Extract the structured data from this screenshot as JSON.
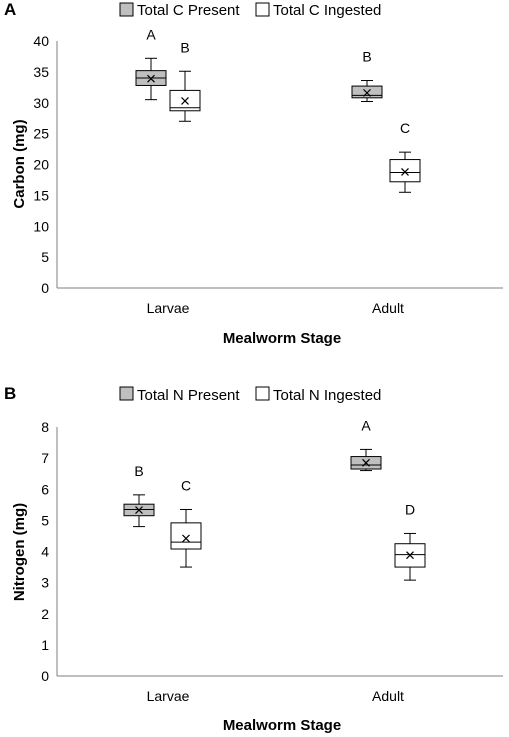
{
  "chart_data": [
    {
      "type": "box",
      "panel_label": "A",
      "xlabel": "Mealworm Stage",
      "ylabel": "Carbon (mg)",
      "ylim": [
        0,
        40
      ],
      "yticks": [
        "0",
        "5",
        "10",
        "15",
        "20",
        "25",
        "30",
        "35",
        "40"
      ],
      "categories": [
        "Larvae",
        "Adult"
      ],
      "legend_position": "top",
      "series": [
        {
          "name": "Total C Present",
          "fill": "#bfbfbf",
          "boxes": [
            {
              "category": "Larvae",
              "min": 30.5,
              "q1": 32.8,
              "median": 34.0,
              "q3": 35.2,
              "max": 37.2,
              "mean": 33.9,
              "letter": "A"
            },
            {
              "category": "Adult",
              "min": 30.2,
              "q1": 30.8,
              "median": 31.2,
              "q3": 32.7,
              "max": 33.6,
              "mean": 31.6,
              "letter": "B"
            }
          ]
        },
        {
          "name": "Total C Ingested",
          "fill": "#ffffff",
          "boxes": [
            {
              "category": "Larvae",
              "min": 27.0,
              "q1": 28.7,
              "median": 29.2,
              "q3": 32.0,
              "max": 35.1,
              "mean": 30.3,
              "letter": "B"
            },
            {
              "category": "Adult",
              "min": 15.5,
              "q1": 17.2,
              "median": 18.7,
              "q3": 20.8,
              "max": 22.0,
              "mean": 18.8,
              "letter": "C"
            }
          ]
        }
      ]
    },
    {
      "type": "box",
      "panel_label": "B",
      "xlabel": "Mealworm Stage",
      "ylabel": "Nitrogen (mg)",
      "ylim": [
        0,
        8
      ],
      "yticks": [
        "0",
        "1",
        "2",
        "3",
        "4",
        "5",
        "6",
        "7",
        "8"
      ],
      "categories": [
        "Larvae",
        "Adult"
      ],
      "legend_position": "top",
      "series": [
        {
          "name": "Total N Present",
          "fill": "#bfbfbf",
          "boxes": [
            {
              "category": "Larvae",
              "min": 4.8,
              "q1": 5.15,
              "median": 5.35,
              "q3": 5.52,
              "max": 5.82,
              "mean": 5.33,
              "letter": "B"
            },
            {
              "category": "Adult",
              "min": 6.6,
              "q1": 6.65,
              "median": 6.78,
              "q3": 7.05,
              "max": 7.28,
              "mean": 6.85,
              "letter": "A"
            }
          ]
        },
        {
          "name": "Total N Ingested",
          "fill": "#ffffff",
          "boxes": [
            {
              "category": "Larvae",
              "min": 3.5,
              "q1": 4.08,
              "median": 4.3,
              "q3": 4.92,
              "max": 5.35,
              "mean": 4.42,
              "letter": "C"
            },
            {
              "category": "Adult",
              "min": 3.08,
              "q1": 3.5,
              "median": 3.9,
              "q3": 4.25,
              "max": 4.58,
              "mean": 3.88,
              "letter": "D"
            }
          ]
        }
      ]
    }
  ]
}
